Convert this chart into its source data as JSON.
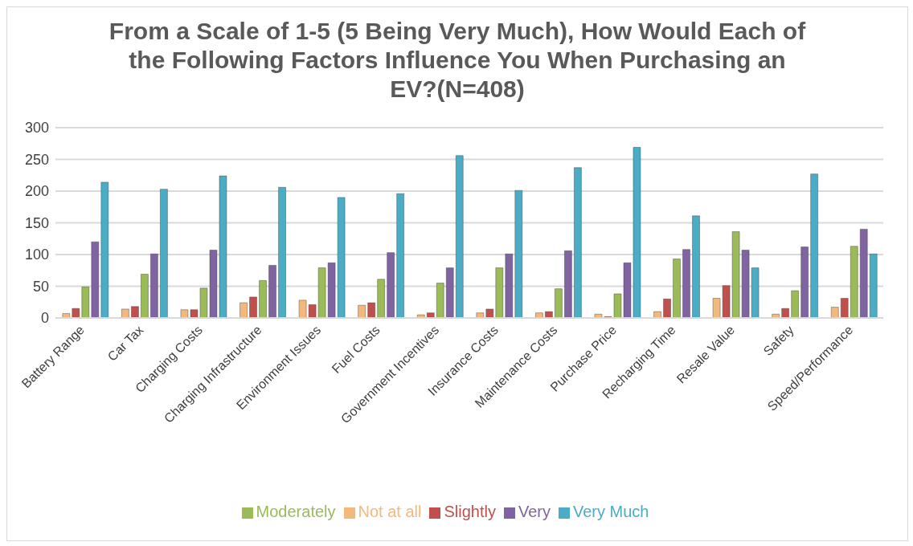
{
  "chart_data": {
    "type": "bar",
    "title": "From a Scale of 1-5 (5 Being Very Much), How Would Each of the Following Factors Influence You When Purchasing an EV?(N=408)",
    "categories": [
      "Battery Range",
      "Car Tax",
      "Charging Costs",
      "Charging Infrastructure",
      "Environment Issues",
      "Fuel Costs",
      "Government Incentives",
      "Insurance Costs",
      "Maintenance Costs",
      "Purchase Price",
      "Recharging Time",
      "Resale Value",
      "Safety",
      "Speed/Performance"
    ],
    "series": [
      {
        "name": "Not at all",
        "color": "#f3b87c",
        "values": [
          7,
          14,
          13,
          24,
          28,
          20,
          5,
          8,
          8,
          6,
          10,
          31,
          6,
          17
        ]
      },
      {
        "name": "Slightly",
        "color": "#c0504d",
        "values": [
          15,
          18,
          13,
          33,
          21,
          24,
          8,
          14,
          10,
          2,
          30,
          51,
          15,
          31
        ]
      },
      {
        "name": "Moderately",
        "color": "#9bbb59",
        "values": [
          49,
          69,
          47,
          59,
          79,
          61,
          55,
          79,
          46,
          38,
          93,
          136,
          43,
          113
        ]
      },
      {
        "name": "Very",
        "color": "#8064a2",
        "values": [
          120,
          101,
          107,
          83,
          87,
          103,
          79,
          101,
          106,
          87,
          108,
          107,
          112,
          140
        ]
      },
      {
        "name": "Very Much",
        "color": "#4bacc6",
        "values": [
          214,
          203,
          224,
          206,
          190,
          196,
          256,
          201,
          237,
          269,
          161,
          79,
          227,
          101
        ]
      }
    ],
    "ylim": [
      0,
      300
    ],
    "yticks": [
      0,
      50,
      100,
      150,
      200,
      250,
      300
    ],
    "grid": "y",
    "legend": "bottom"
  }
}
